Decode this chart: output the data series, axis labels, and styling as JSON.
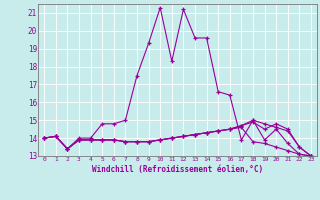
{
  "xlabel": "Windchill (Refroidissement éolien,°C)",
  "background_color": "#c8ecec",
  "grid_color": "#ffffff",
  "line_color": "#990099",
  "xlim": [
    -0.5,
    23.5
  ],
  "ylim": [
    13,
    21.5
  ],
  "xticks": [
    0,
    1,
    2,
    3,
    4,
    5,
    6,
    7,
    8,
    9,
    10,
    11,
    12,
    13,
    14,
    15,
    16,
    17,
    18,
    19,
    20,
    21,
    22,
    23
  ],
  "yticks": [
    13,
    14,
    15,
    16,
    17,
    18,
    19,
    20,
    21
  ],
  "series": [
    [
      14.0,
      14.1,
      13.4,
      14.0,
      14.0,
      14.8,
      14.8,
      15.0,
      17.5,
      19.3,
      21.3,
      18.3,
      21.2,
      19.6,
      19.6,
      16.6,
      16.4,
      13.9,
      15.0,
      13.9,
      14.5,
      13.7,
      13.1,
      13.0
    ],
    [
      14.0,
      14.1,
      13.4,
      13.9,
      13.9,
      13.9,
      13.9,
      13.8,
      13.8,
      13.8,
      13.9,
      14.0,
      14.1,
      14.2,
      14.3,
      14.4,
      14.5,
      14.6,
      13.8,
      13.7,
      13.5,
      13.3,
      13.1,
      13.0
    ],
    [
      14.0,
      14.1,
      13.4,
      13.9,
      13.9,
      13.9,
      13.9,
      13.8,
      13.8,
      13.8,
      13.9,
      14.0,
      14.1,
      14.2,
      14.3,
      14.4,
      14.5,
      14.7,
      14.9,
      14.5,
      14.8,
      14.5,
      13.5,
      13.0
    ],
    [
      14.0,
      14.1,
      13.4,
      13.9,
      13.9,
      13.9,
      13.9,
      13.8,
      13.8,
      13.8,
      13.9,
      14.0,
      14.1,
      14.2,
      14.3,
      14.4,
      14.5,
      14.7,
      15.0,
      14.8,
      14.6,
      14.4,
      13.5,
      13.0
    ]
  ]
}
